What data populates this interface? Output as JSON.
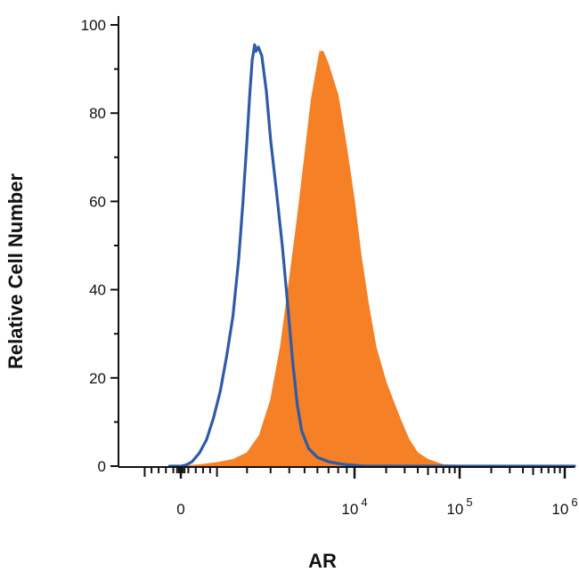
{
  "chart_data": {
    "type": "area",
    "xlabel": "AR",
    "ylabel": "Relative Cell Number",
    "ylim": [
      0,
      100
    ],
    "x_scale": "biexponential",
    "y_ticks": [
      "0",
      "20",
      "40",
      "60",
      "80",
      "100"
    ],
    "x_ticks": [
      {
        "base": "0",
        "exp": "",
        "value": 0
      },
      {
        "base": "10",
        "exp": "4",
        "value": 10000
      },
      {
        "base": "10",
        "exp": "5",
        "value": 100000
      },
      {
        "base": "10",
        "exp": "6",
        "value": 1000000
      }
    ],
    "grid": false,
    "series": [
      {
        "style": "outline",
        "color": "#2f5aa8",
        "x": [
          -300,
          -150,
          0,
          150,
          300,
          500,
          700,
          900,
          1100,
          1300,
          1500,
          1700,
          1850,
          2000,
          2100,
          2200,
          2300,
          2350,
          2450,
          2600,
          2800,
          3000,
          3300,
          3600,
          3900,
          4200,
          4500,
          4800,
          5300,
          6000,
          7000,
          8000,
          9000,
          10000,
          12000,
          20000,
          50000,
          200000,
          1000000,
          2000000
        ],
        "y": [
          0,
          0,
          0,
          0.3,
          1,
          3,
          6,
          11,
          17,
          25,
          34,
          47,
          60,
          74,
          84,
          92,
          95.5,
          94,
          95,
          93,
          85,
          74,
          62,
          50,
          37,
          24,
          14,
          8,
          4,
          2,
          1,
          0.6,
          0.3,
          0.2,
          0,
          0,
          0,
          0,
          0,
          0
        ]
      },
      {
        "style": "filled",
        "color": "#f58025",
        "x": [
          -300,
          0,
          500,
          1000,
          1500,
          2000,
          2500,
          3000,
          3500,
          4000,
          4500,
          5000,
          5500,
          6000,
          6200,
          6500,
          7000,
          8000,
          9000,
          10000,
          11500,
          13500,
          16000,
          20000,
          24000,
          28000,
          33000,
          40000,
          50000,
          70000,
          200000,
          1000000,
          2000000
        ],
        "y": [
          0,
          0,
          0.3,
          0.8,
          1.5,
          3,
          7,
          15,
          27,
          42,
          56,
          70,
          83,
          91,
          94,
          94,
          91,
          84,
          72,
          60,
          48,
          37,
          27,
          19,
          14,
          10,
          6,
          3,
          1.5,
          0.3,
          0,
          0,
          0
        ]
      }
    ]
  }
}
